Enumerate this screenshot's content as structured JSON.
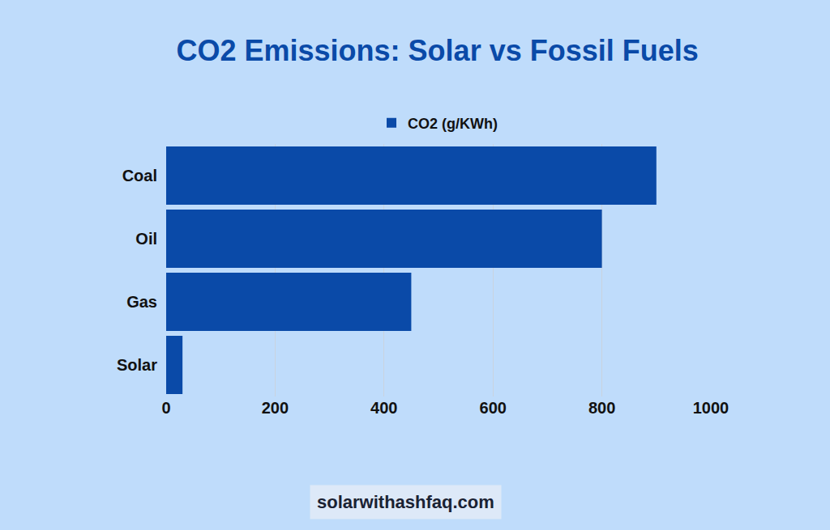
{
  "chart_data": {
    "type": "bar",
    "orientation": "horizontal",
    "title": "CO2 Emissions: Solar vs Fossil Fuels",
    "categories": [
      "Coal",
      "Oil",
      "Gas",
      "Solar"
    ],
    "series": [
      {
        "name": "CO2 (g/KWh)",
        "color": "#0a4aa8",
        "values": [
          900,
          800,
          450,
          30
        ]
      }
    ],
    "xlim": [
      0,
      1000
    ],
    "xticks": [
      0,
      200,
      400,
      600,
      800,
      1000
    ],
    "grid": true,
    "legend": "top",
    "annotations": [
      "solarwithashfaq.com"
    ]
  }
}
